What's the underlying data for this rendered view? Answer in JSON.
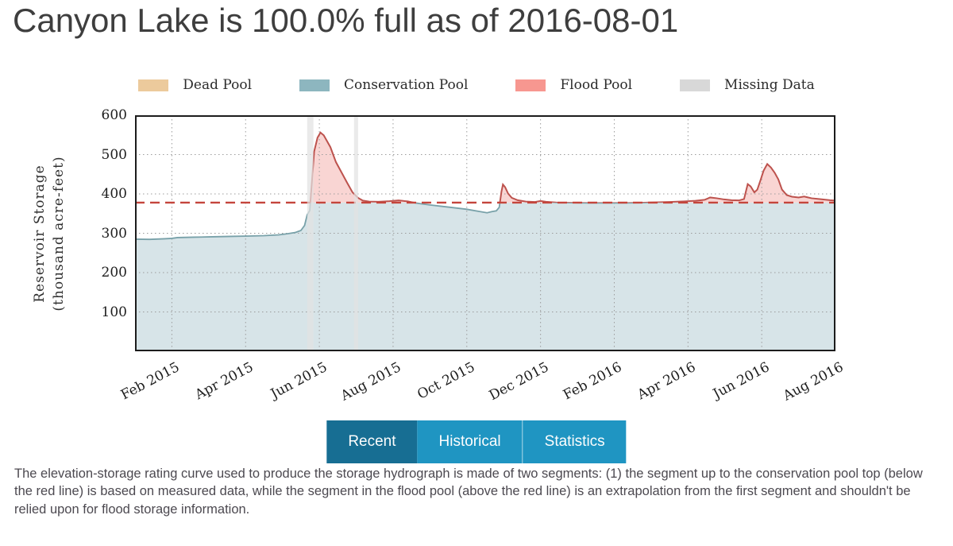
{
  "header": {
    "title": "Canyon Lake is 100.0% full as of 2016-08-01"
  },
  "legend": {
    "items": [
      {
        "label": "Dead Pool",
        "color": "#ecca9c"
      },
      {
        "label": "Conservation Pool",
        "color": "#8db6bf"
      },
      {
        "label": "Flood Pool",
        "color": "#f79790"
      },
      {
        "label": "Missing Data",
        "color": "#d8d8d8"
      }
    ]
  },
  "tabs": {
    "items": [
      {
        "label": "Recent",
        "active": true
      },
      {
        "label": "Historical",
        "active": false
      },
      {
        "label": "Statistics",
        "active": false
      }
    ]
  },
  "footer": {
    "text": "The elevation-storage rating curve used to produce the storage hydrograph is made of two segments: (1) the segment up to the conservation pool top (below the red line) is based on measured data, while the segment in the flood pool (above the red line) is an extrapolation from the first segment and shouldn't be relied upon for flood storage information."
  },
  "chart_data": {
    "type": "area",
    "title": "",
    "ylabel_lines": [
      "Reservoir Storage",
      "(thousand acre-feet)"
    ],
    "ylabel": "Reservoir Storage (thousand acre-feet)",
    "xlabel": "",
    "ylim": [
      0,
      600
    ],
    "yticks": [
      100,
      200,
      300,
      400,
      500,
      600
    ],
    "x_unit": "months since 2015-01-01",
    "xlim": [
      0,
      19
    ],
    "xticks": [
      {
        "m": 1,
        "label": "Feb 2015"
      },
      {
        "m": 3,
        "label": "Apr 2015"
      },
      {
        "m": 5,
        "label": "Jun 2015"
      },
      {
        "m": 7,
        "label": "Aug 2015"
      },
      {
        "m": 9,
        "label": "Oct 2015"
      },
      {
        "m": 11,
        "label": "Dec 2015"
      },
      {
        "m": 13,
        "label": "Feb 2016"
      },
      {
        "m": 15,
        "label": "Apr 2016"
      },
      {
        "m": 17,
        "label": "Jun 2016"
      },
      {
        "m": 19,
        "label": "Aug 2016"
      }
    ],
    "conservation_pool_top": 378,
    "grid": true,
    "legend_position": "top",
    "missing_data_ranges": [
      [
        4.67,
        4.84
      ],
      [
        5.94,
        6.05
      ]
    ],
    "series": [
      {
        "name": "Reservoir Storage (thousand acre-feet)",
        "points": [
          [
            0,
            285
          ],
          [
            0.4,
            284.5
          ],
          [
            0.8,
            286
          ],
          [
            1.0,
            287
          ],
          [
            1.15,
            289
          ],
          [
            1.6,
            290
          ],
          [
            2.1,
            291
          ],
          [
            2.6,
            292
          ],
          [
            3.1,
            293
          ],
          [
            3.5,
            294
          ],
          [
            3.9,
            296
          ],
          [
            4.15,
            299
          ],
          [
            4.35,
            302
          ],
          [
            4.5,
            307
          ],
          [
            4.6,
            320
          ],
          [
            4.67,
            347
          ],
          [
            4.74,
            358
          ],
          [
            4.86,
            508
          ],
          [
            4.95,
            543
          ],
          [
            5.03,
            556
          ],
          [
            5.12,
            549
          ],
          [
            5.3,
            519
          ],
          [
            5.45,
            481
          ],
          [
            5.6,
            455
          ],
          [
            5.75,
            429
          ],
          [
            5.9,
            404
          ],
          [
            6.05,
            390
          ],
          [
            6.18,
            383
          ],
          [
            6.35,
            380.5
          ],
          [
            6.6,
            380
          ],
          [
            6.9,
            381.5
          ],
          [
            7.15,
            383.5
          ],
          [
            7.4,
            381
          ],
          [
            7.6,
            377
          ],
          [
            8.0,
            372
          ],
          [
            8.5,
            366.5
          ],
          [
            9.0,
            361
          ],
          [
            9.3,
            356
          ],
          [
            9.55,
            352
          ],
          [
            9.68,
            355
          ],
          [
            9.8,
            357
          ],
          [
            9.88,
            366
          ],
          [
            9.94,
            406
          ],
          [
            9.98,
            424
          ],
          [
            10.04,
            417
          ],
          [
            10.12,
            401
          ],
          [
            10.22,
            390
          ],
          [
            10.38,
            384
          ],
          [
            10.6,
            380.5
          ],
          [
            10.85,
            379.5
          ],
          [
            11.0,
            382
          ],
          [
            11.15,
            380
          ],
          [
            11.45,
            378
          ],
          [
            11.8,
            377.5
          ],
          [
            12.3,
            377
          ],
          [
            12.8,
            377
          ],
          [
            13.3,
            377
          ],
          [
            13.7,
            377.5
          ],
          [
            14.1,
            378.5
          ],
          [
            14.5,
            379.5
          ],
          [
            14.9,
            381
          ],
          [
            15.2,
            382.5
          ],
          [
            15.45,
            385
          ],
          [
            15.6,
            391
          ],
          [
            15.78,
            389
          ],
          [
            15.98,
            386
          ],
          [
            16.18,
            384
          ],
          [
            16.38,
            383.5
          ],
          [
            16.52,
            387
          ],
          [
            16.62,
            425
          ],
          [
            16.7,
            419
          ],
          [
            16.8,
            404
          ],
          [
            16.88,
            411
          ],
          [
            16.96,
            433
          ],
          [
            17.05,
            459
          ],
          [
            17.15,
            476
          ],
          [
            17.25,
            467
          ],
          [
            17.35,
            454
          ],
          [
            17.45,
            437
          ],
          [
            17.55,
            411
          ],
          [
            17.68,
            397
          ],
          [
            17.82,
            393
          ],
          [
            18.0,
            391
          ],
          [
            18.15,
            393.5
          ],
          [
            18.35,
            389
          ],
          [
            18.6,
            386.5
          ],
          [
            18.85,
            384
          ],
          [
            19.0,
            383
          ]
        ]
      }
    ],
    "colors": {
      "conservation_fill": "#d7e4e8",
      "conservation_line": "#78a1a9",
      "flood_fill": "#f9d5d3",
      "flood_line": "#bd524d",
      "pool_top_line": "#c4453c",
      "missing_fill": "#e2e2e2",
      "grid": "#9c9c9c",
      "border": "#1c1c1c",
      "tab_active_bg": "#176e93",
      "tab_inactive_bg": "#1f95c2"
    }
  }
}
